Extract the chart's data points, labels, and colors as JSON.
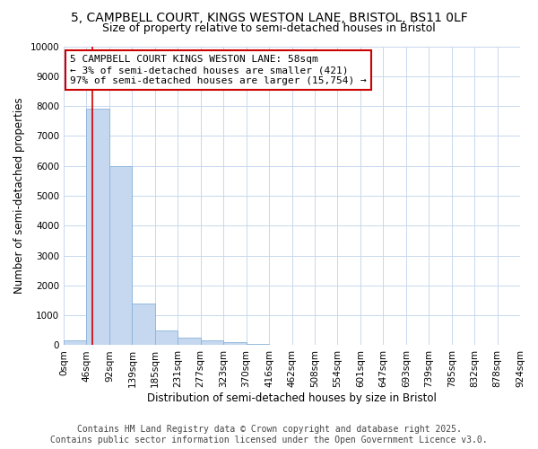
{
  "title": "5, CAMPBELL COURT, KINGS WESTON LANE, BRISTOL, BS11 0LF",
  "subtitle": "Size of property relative to semi-detached houses in Bristol",
  "xlabel": "Distribution of semi-detached houses by size in Bristol",
  "ylabel": "Number of semi-detached properties",
  "bar_color": "#c5d8f0",
  "bar_edge_color": "#8ab4d8",
  "background_color": "#ffffff",
  "grid_color": "#c8d8ee",
  "bin_labels": [
    "0sqm",
    "46sqm",
    "92sqm",
    "139sqm",
    "185sqm",
    "231sqm",
    "277sqm",
    "323sqm",
    "370sqm",
    "416sqm",
    "462sqm",
    "508sqm",
    "554sqm",
    "601sqm",
    "647sqm",
    "693sqm",
    "739sqm",
    "785sqm",
    "832sqm",
    "878sqm",
    "924sqm"
  ],
  "bar_values": [
    150,
    7900,
    6000,
    1400,
    500,
    250,
    150,
    100,
    50,
    10,
    5,
    3,
    2,
    1,
    1,
    0,
    0,
    0,
    0,
    0
  ],
  "red_line_x": 1.26,
  "annotation_text": "5 CAMPBELL COURT KINGS WESTON LANE: 58sqm\n← 3% of semi-detached houses are smaller (421)\n97% of semi-detached houses are larger (15,754) →",
  "annotation_box_color": "#ffffff",
  "annotation_border_color": "#cc0000",
  "ylim": [
    0,
    10000
  ],
  "yticks": [
    0,
    1000,
    2000,
    3000,
    4000,
    5000,
    6000,
    7000,
    8000,
    9000,
    10000
  ],
  "footer_line1": "Contains HM Land Registry data © Crown copyright and database right 2025.",
  "footer_line2": "Contains public sector information licensed under the Open Government Licence v3.0.",
  "title_fontsize": 10,
  "subtitle_fontsize": 9,
  "footer_fontsize": 7,
  "annotation_fontsize": 8,
  "axis_label_fontsize": 8.5,
  "tick_fontsize": 7.5
}
